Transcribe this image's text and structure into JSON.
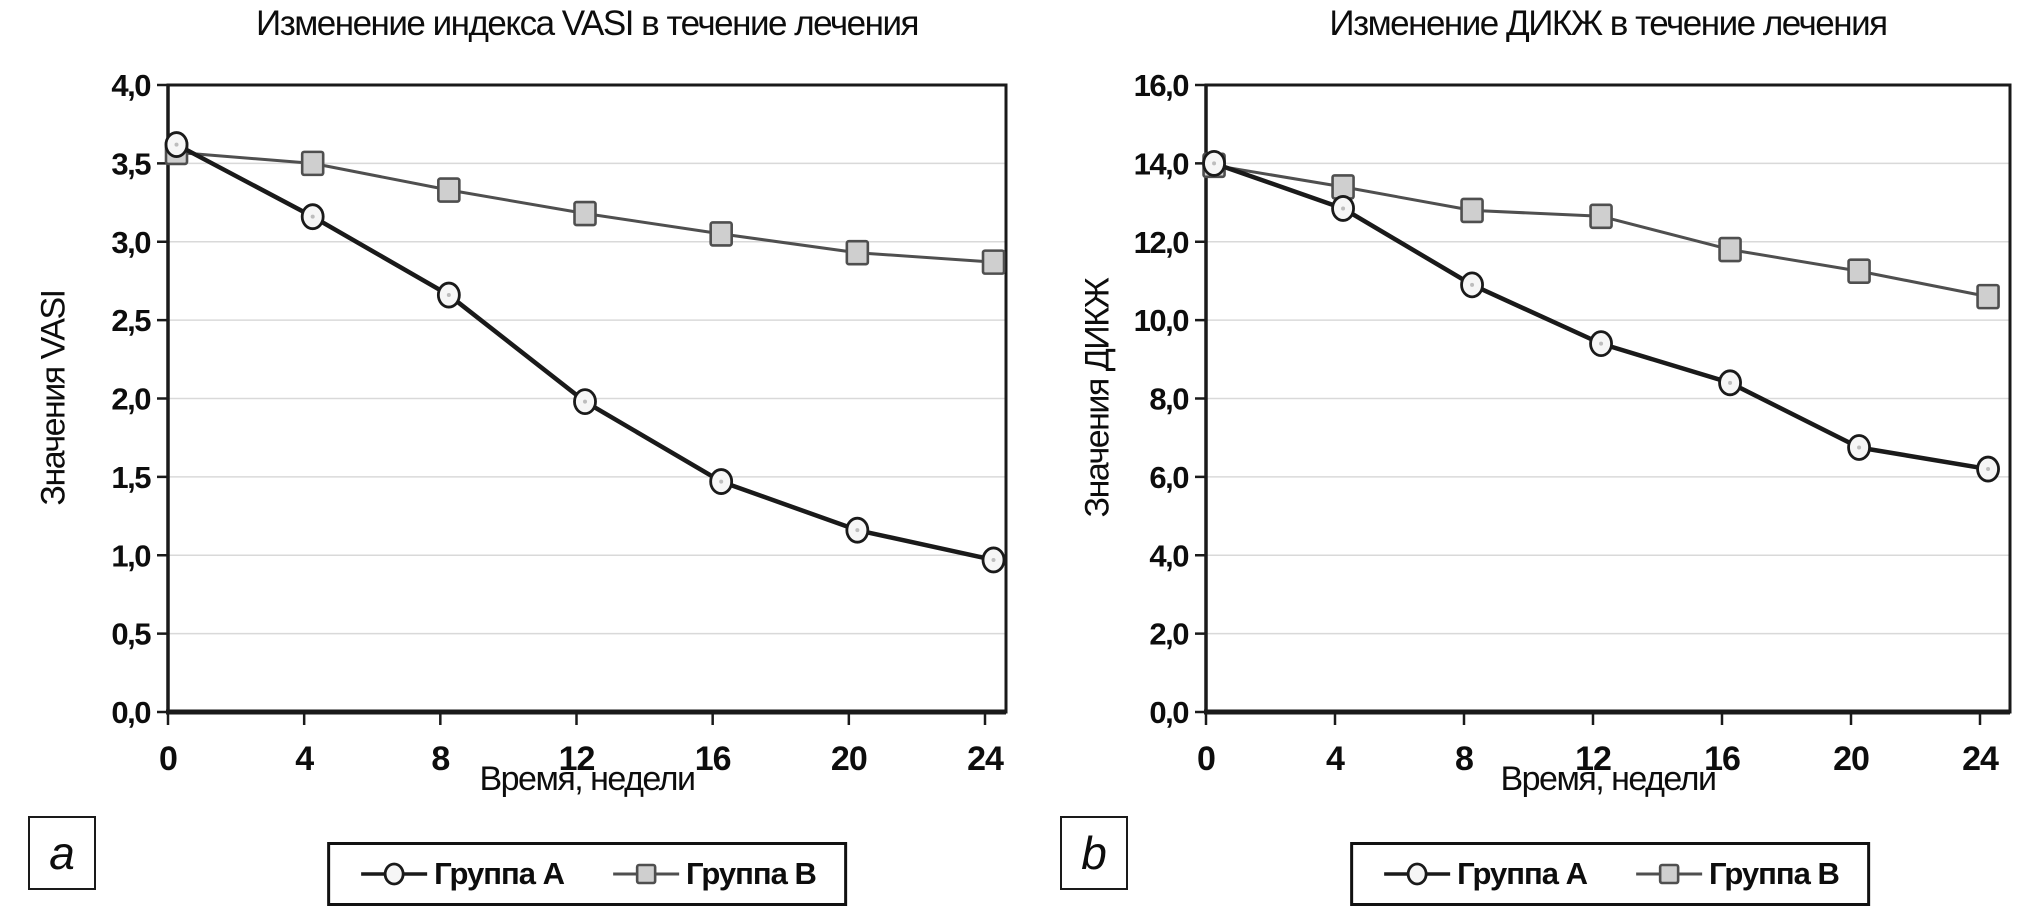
{
  "chart_data": [
    {
      "type": "line",
      "panel_label": "a",
      "title": "Изменение индекса VASI в течение лечения",
      "xlabel": "Время, недели",
      "ylabel": "Значения VASI",
      "x": [
        0,
        4,
        8,
        12,
        16,
        20,
        24
      ],
      "xtick_labels": [
        "0",
        "4",
        "8",
        "12",
        "16",
        "20",
        "24"
      ],
      "ylim": [
        0,
        4
      ],
      "ystep": 0.5,
      "ytick_labels": [
        "0,0",
        "0,5",
        "1,0",
        "1,5",
        "2,0",
        "2,5",
        "3,0",
        "3,5",
        "4,0"
      ],
      "grid": true,
      "legend_position": "bottom",
      "series": [
        {
          "name": "Группа А",
          "marker": "circle",
          "values": [
            3.62,
            3.16,
            2.66,
            1.98,
            1.47,
            1.16,
            0.97
          ]
        },
        {
          "name": "Группа В",
          "marker": "square",
          "values": [
            3.57,
            3.5,
            3.33,
            3.18,
            3.05,
            2.93,
            2.87
          ]
        }
      ]
    },
    {
      "type": "line",
      "panel_label": "b",
      "title": "Изменение ДИКЖ в течение лечения",
      "xlabel": "Время, недели",
      "ylabel": "Значения ДИКЖ",
      "x": [
        0,
        4,
        8,
        12,
        16,
        20,
        24
      ],
      "xtick_labels": [
        "0",
        "4",
        "8",
        "12",
        "16",
        "20",
        "24"
      ],
      "ylim": [
        0,
        16
      ],
      "ystep": 2,
      "ytick_labels": [
        "0,0",
        "2,0",
        "4,0",
        "6,0",
        "8,0",
        "10,0",
        "12,0",
        "14,0",
        "16,0"
      ],
      "grid": true,
      "legend_position": "bottom",
      "series": [
        {
          "name": "Группа А",
          "marker": "circle",
          "values": [
            14.0,
            12.85,
            10.9,
            9.4,
            8.4,
            6.75,
            6.2
          ]
        },
        {
          "name": "Группа В",
          "marker": "square",
          "values": [
            13.95,
            13.4,
            12.8,
            12.65,
            11.8,
            11.25,
            10.6
          ]
        }
      ]
    }
  ],
  "colors": {
    "series_a_line": "#1a1a1a",
    "series_b_line": "#4f4f4f",
    "circle_marker_fill": "#f6f6f6",
    "square_marker_fill": "#cfcfcf",
    "gridline": "#d9d9d9",
    "axis_frame": "#1a1a1a",
    "background": "#ffffff",
    "text": "#111111"
  }
}
